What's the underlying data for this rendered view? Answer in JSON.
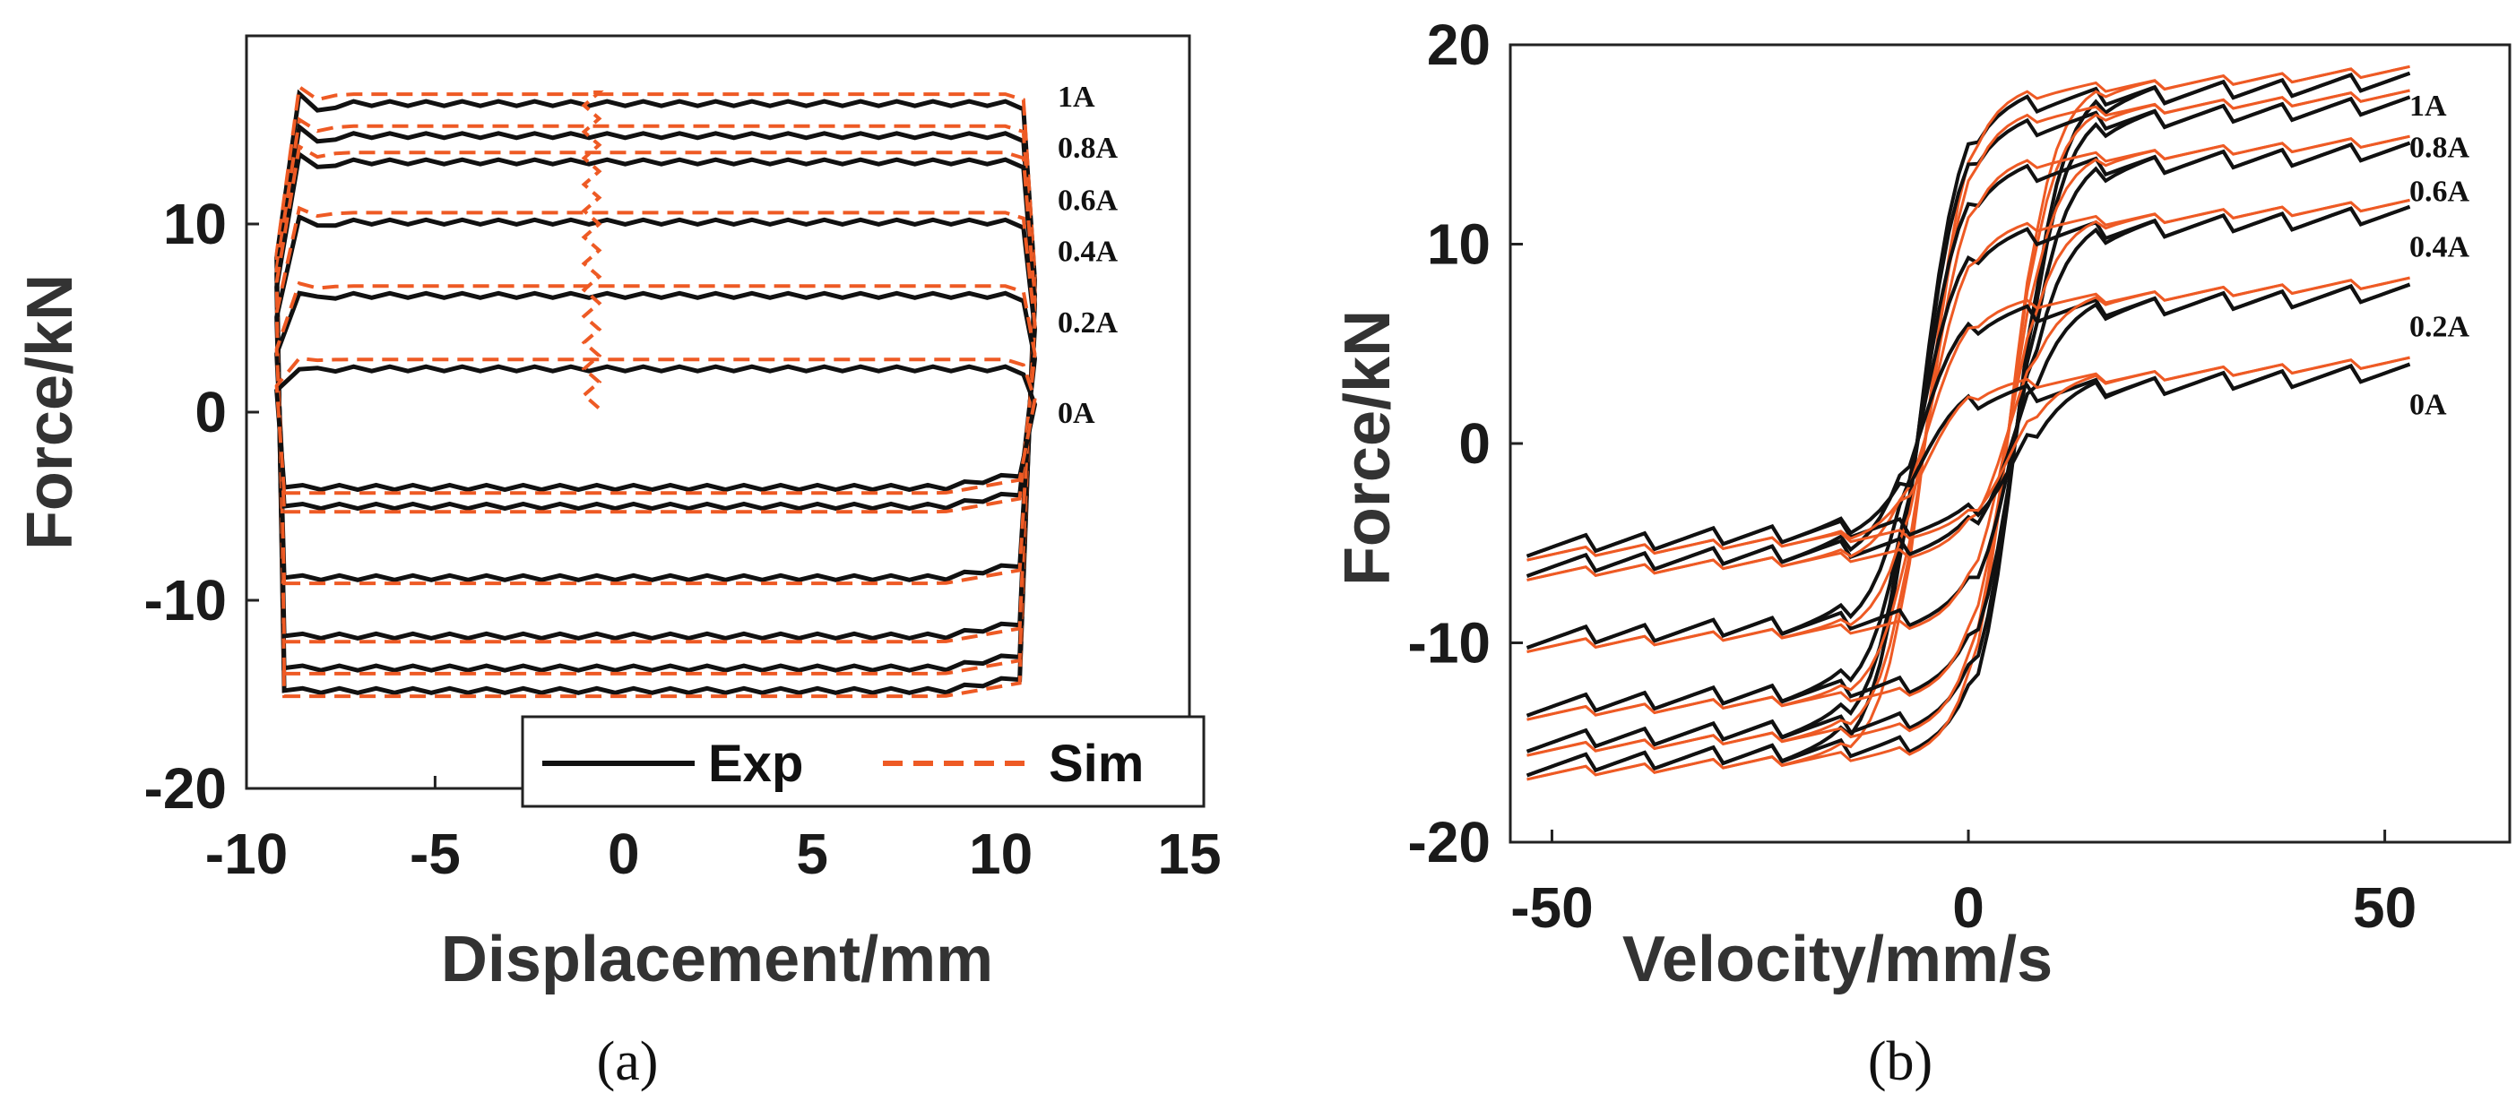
{
  "colors": {
    "exp": "#111111",
    "sim": "#ee5a24",
    "axis": "#222222"
  },
  "chart_data": [
    {
      "type": "line",
      "panel_label": "(a)",
      "xlabel": "Displacement/mm",
      "ylabel": "Force/kN",
      "xlim": [
        -10,
        15
      ],
      "ylim": [
        -20,
        20
      ],
      "xticks": [
        -10,
        -5,
        0,
        5,
        10,
        15
      ],
      "yticks": [
        -20,
        -10,
        0,
        10
      ],
      "legend": {
        "position": "bottom-right",
        "entries": [
          {
            "name": "Exp",
            "style": "solid"
          },
          {
            "name": "Sim",
            "style": "dashed"
          }
        ]
      },
      "currents": [
        "1A",
        "0.8A",
        "0.6A",
        "0.4A",
        "0.2A",
        "0A"
      ],
      "loops": [
        {
          "current": "1A",
          "upper": 16.4,
          "lower": -14.8
        },
        {
          "current": "0.8A",
          "upper": 14.7,
          "lower": -13.6
        },
        {
          "current": "0.6A",
          "upper": 13.3,
          "lower": -11.9
        },
        {
          "current": "0.4A",
          "upper": 10.1,
          "lower": -8.8
        },
        {
          "current": "0.2A",
          "upper": 6.2,
          "lower": -5.0
        },
        {
          "current": "0A",
          "upper": 2.3,
          "lower": -4.0
        }
      ],
      "displacement_range": [
        -9.2,
        10.9
      ]
    },
    {
      "type": "line",
      "panel_label": "(b)",
      "xlabel": "Velocity/mm/s",
      "ylabel": "Force/kN",
      "xlim": [
        -55,
        65
      ],
      "ylim": [
        -20,
        20
      ],
      "xticks": [
        -50,
        0,
        50
      ],
      "yticks": [
        -20,
        -10,
        0,
        10,
        20
      ],
      "currents": [
        "1A",
        "0.8A",
        "0.6A",
        "0.4A",
        "0.2A",
        "0A"
      ],
      "loops": [
        {
          "current": "1A",
          "upper": 17.0,
          "lower": -15.0
        },
        {
          "current": "0.8A",
          "upper": 15.8,
          "lower": -13.8
        },
        {
          "current": "0.6A",
          "upper": 13.5,
          "lower": -12.0
        },
        {
          "current": "0.4A",
          "upper": 10.3,
          "lower": -8.6
        },
        {
          "current": "0.2A",
          "upper": 6.4,
          "lower": -5.0
        },
        {
          "current": "0A",
          "upper": 2.4,
          "lower": -4.0
        }
      ],
      "velocity_range": [
        -53,
        53
      ]
    }
  ]
}
